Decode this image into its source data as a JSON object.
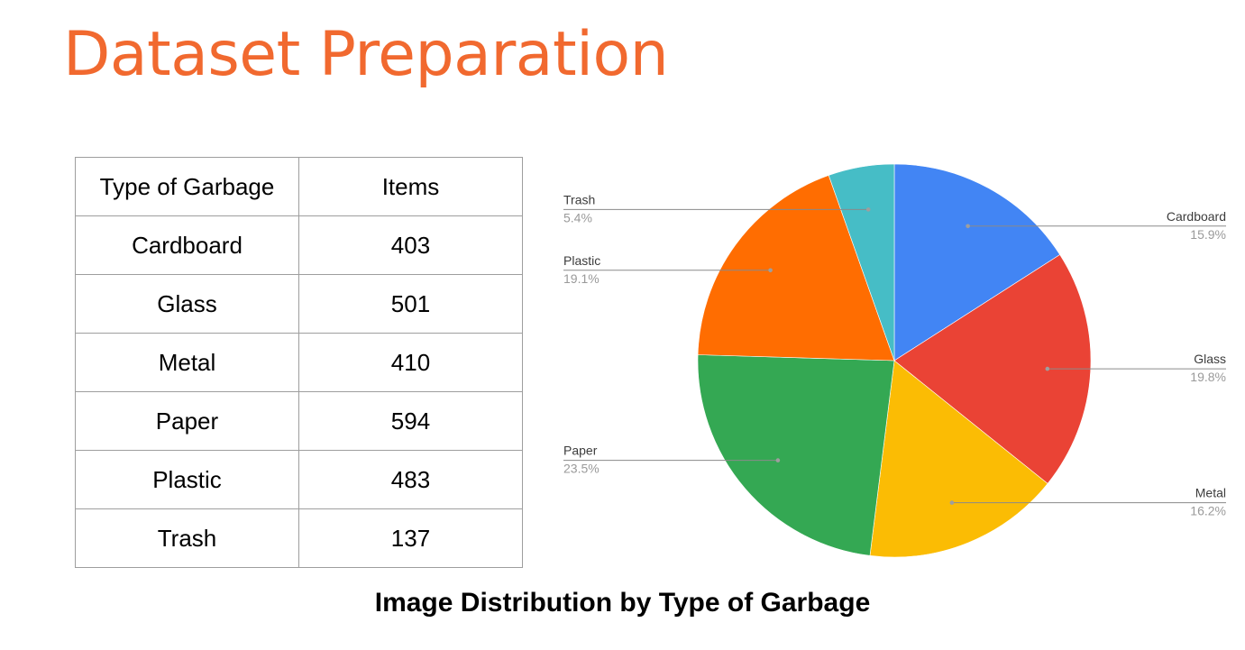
{
  "slide": {
    "title": "Dataset Preparation"
  },
  "table": {
    "headers": [
      "Type of Garbage",
      "Items"
    ],
    "rows": [
      [
        "Cardboard",
        "403"
      ],
      [
        "Glass",
        "501"
      ],
      [
        "Metal",
        "410"
      ],
      [
        "Paper",
        "594"
      ],
      [
        "Plastic",
        "483"
      ],
      [
        "Trash",
        "137"
      ]
    ]
  },
  "chart_data": {
    "type": "pie",
    "title": "Image Distribution by Type of Garbage",
    "slices": [
      {
        "label": "Cardboard",
        "value": 403,
        "percent_label": "15.9%",
        "color": "#4285f4"
      },
      {
        "label": "Glass",
        "value": 501,
        "percent_label": "19.8%",
        "color": "#ea4335"
      },
      {
        "label": "Metal",
        "value": 410,
        "percent_label": "16.2%",
        "color": "#fbbc04"
      },
      {
        "label": "Paper",
        "value": 594,
        "percent_label": "23.5%",
        "color": "#34a853"
      },
      {
        "label": "Plastic",
        "value": 483,
        "percent_label": "19.1%",
        "color": "#ff6d01"
      },
      {
        "label": "Trash",
        "value": 137,
        "percent_label": "5.4%",
        "color": "#46bdc6"
      }
    ],
    "legend": "none",
    "label_style": "callout"
  }
}
